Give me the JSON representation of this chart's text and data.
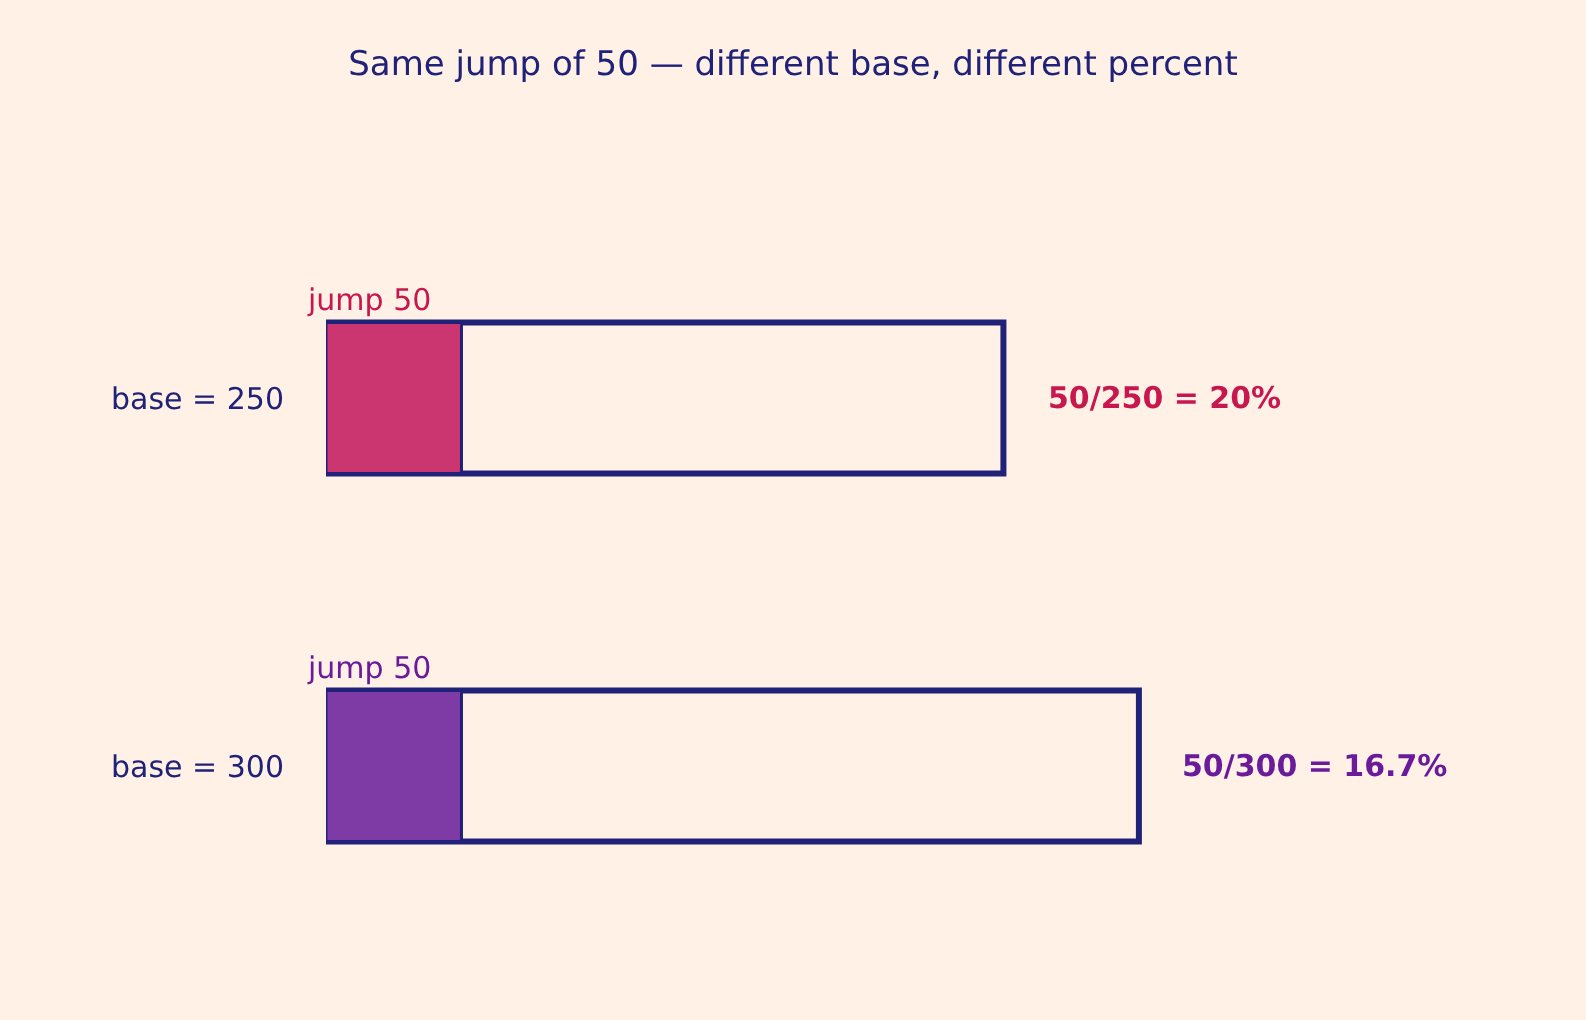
{
  "chart_data": {
    "type": "bar",
    "orientation": "horizontal",
    "title": "Same jump of 50 — different base, different percent",
    "categories": [
      "base = 250",
      "base = 300"
    ],
    "series": [
      {
        "color": "#1f2278",
        "values": [
          250,
          300
        ]
      },
      {
        "colors": [
          "#cc3670",
          "#7e3ba6"
        ],
        "values": [
          50,
          50
        ],
        "value_labels": [
          "jump 50",
          "jump 50"
        ]
      }
    ],
    "annotations": [
      {
        "text": "50/250 = 20%",
        "x": 250,
        "y": "base = 250"
      },
      {
        "text": "50/300 = 16.7%",
        "x": 300,
        "y": "base = 300"
      }
    ],
    "grid": false,
    "tick_labels": "y"
  }
}
